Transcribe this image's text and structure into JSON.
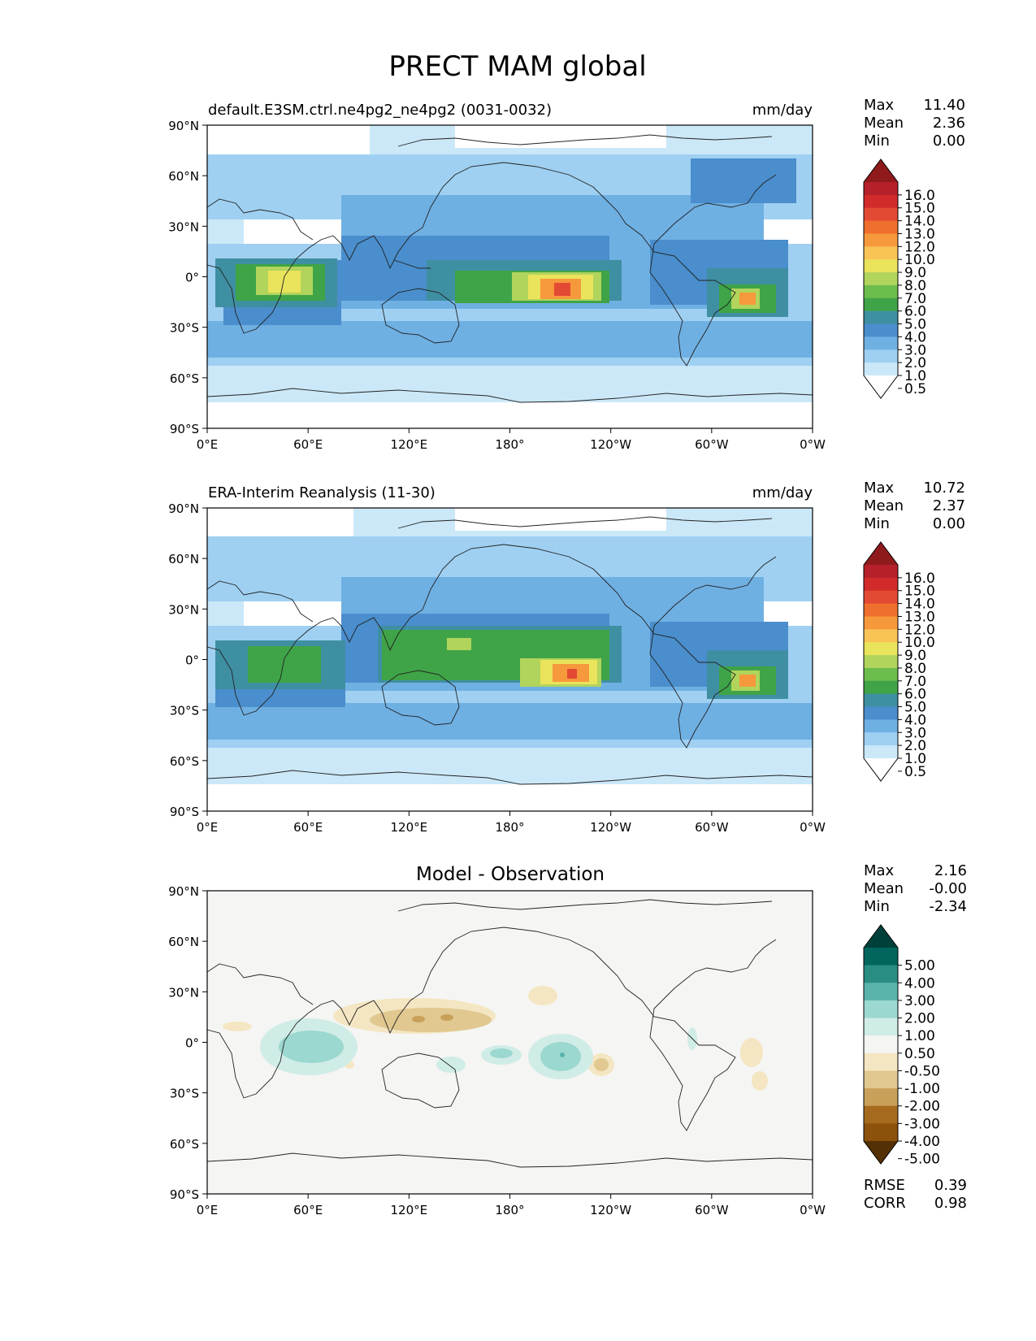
{
  "title": "PRECT MAM global",
  "lat_ticks": [
    "90°N",
    "60°N",
    "30°N",
    "0°",
    "30°S",
    "60°S",
    "90°S"
  ],
  "lon_ticks": [
    "0°E",
    "60°E",
    "120°E",
    "180°",
    "120°W",
    "60°W",
    "0°W"
  ],
  "stat_labels": {
    "max": "Max",
    "mean": "Mean",
    "min": "Min",
    "rmse": "RMSE",
    "corr": "CORR"
  },
  "panels": [
    {
      "id": "test",
      "left_title": "default.E3SM.ctrl.ne4pg2_ne4pg2 (0031-0032)",
      "center_title": "",
      "right_title": "mm/day",
      "stats": {
        "max": "11.40",
        "mean": "2.36",
        "min": "0.00"
      },
      "colorbar": {
        "labels": [
          "16.0",
          "15.0",
          "14.0",
          "13.0",
          "12.0",
          "10.0",
          "9.0",
          "8.0",
          "7.0",
          "6.0",
          "5.0",
          "4.0",
          "3.0",
          "2.0",
          "1.0",
          "0.5"
        ],
        "colors": [
          "#8e1a1c",
          "#b5202a",
          "#d22b2b",
          "#e34a33",
          "#ef6f2e",
          "#f6993c",
          "#f9c356",
          "#eae35c",
          "#b0d45c",
          "#6cbd4d",
          "#3fa447",
          "#3f8fa3",
          "#4a8ecd",
          "#6fb0e3",
          "#9fd0f2",
          "#cbe8f8",
          "#ffffff"
        ]
      }
    },
    {
      "id": "ref",
      "left_title": "ERA-Interim Reanalysis (11-30)",
      "center_title": "",
      "right_title": "mm/day",
      "stats": {
        "max": "10.72",
        "mean": "2.37",
        "min": "0.00"
      },
      "colorbar": {
        "labels": [
          "16.0",
          "15.0",
          "14.0",
          "13.0",
          "12.0",
          "10.0",
          "9.0",
          "8.0",
          "7.0",
          "6.0",
          "5.0",
          "4.0",
          "3.0",
          "2.0",
          "1.0",
          "0.5"
        ],
        "colors": [
          "#8e1a1c",
          "#b5202a",
          "#d22b2b",
          "#e34a33",
          "#ef6f2e",
          "#f6993c",
          "#f9c356",
          "#eae35c",
          "#b0d45c",
          "#6cbd4d",
          "#3fa447",
          "#3f8fa3",
          "#4a8ecd",
          "#6fb0e3",
          "#9fd0f2",
          "#cbe8f8",
          "#ffffff"
        ]
      }
    },
    {
      "id": "diff",
      "left_title": "",
      "center_title": "Model - Observation",
      "right_title": "",
      "stats": {
        "max": "2.16",
        "mean": "-0.00",
        "min": "-2.34",
        "rmse": "0.39",
        "corr": "0.98"
      },
      "colorbar": {
        "labels": [
          "5.00",
          "4.00",
          "3.00",
          "2.00",
          "1.00",
          "0.50",
          "-0.50",
          "-1.00",
          "-2.00",
          "-3.00",
          "-4.00",
          "-5.00"
        ],
        "colors": [
          "#00403a",
          "#01665e",
          "#2a8d83",
          "#5ab4ac",
          "#9bd8cf",
          "#d0ece7",
          "#f5f5f3",
          "#f4e6c2",
          "#e0c890",
          "#c9a05a",
          "#a66a1f",
          "#8c510a",
          "#543005"
        ]
      }
    }
  ]
}
